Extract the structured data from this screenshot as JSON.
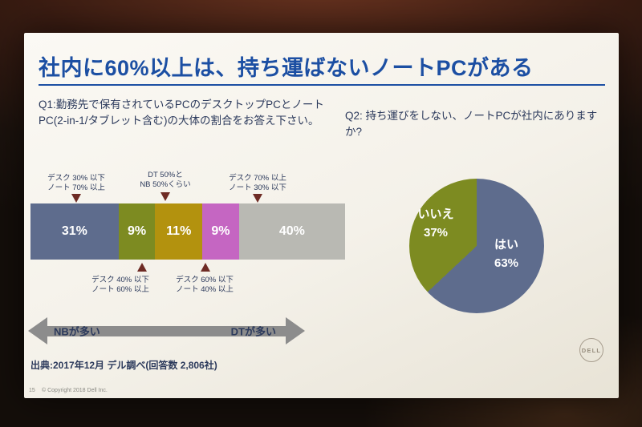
{
  "slide": {
    "title": "社内に60%以上は、持ち運ばないノートPCがある",
    "page_number": "15",
    "copyright": "© Copyright 2018 Dell Inc.",
    "logo_text": "DELL",
    "colors": {
      "title_blue": "#1c4fa3",
      "body_text": "#2c3a5c",
      "annotation_arrow": "#6e2b24",
      "axis_gray": "#8c8c8c"
    }
  },
  "chart_data": [
    {
      "type": "bar",
      "subtype": "horizontal-stacked",
      "question": "Q1:勤務先で保有されているPCのデスクトップPCとノートPC(2-in-1/タブレット含む)の大体の割合をお答え下さい。",
      "unit": "%",
      "total": 100,
      "segments": [
        {
          "category": "デスク30%以下・ノート70%以上",
          "value": 31,
          "display": "31%",
          "color": "#5e6c8d"
        },
        {
          "category": "デスク40%以下・ノート60%以上",
          "value": 9,
          "display": "9%",
          "color": "#7d8b21"
        },
        {
          "category": "DT50%とNB50%くらい",
          "value": 11,
          "display": "11%",
          "color": "#b3920e"
        },
        {
          "category": "デスク60%以下・ノート40%以上",
          "value": 9,
          "display": "9%",
          "color": "#c566c2"
        },
        {
          "category": "デスク70%以上・ノート30%以下",
          "value": 40,
          "display": "40%",
          "color": "#b9b9b3"
        }
      ],
      "annotations_top": [
        {
          "line1": "デスク 30% 以下",
          "line2": "ノート 70% 以上"
        },
        {
          "line1": "DT 50%と",
          "line2": "NB 50%くらい"
        },
        {
          "line1": "デスク 70% 以上",
          "line2": "ノート 30% 以下"
        }
      ],
      "annotations_bottom": [
        {
          "line1": "デスク 40% 以下",
          "line2": "ノート 60% 以上"
        },
        {
          "line1": "デスク 60% 以下",
          "line2": "ノート 40% 以上"
        }
      ],
      "axis_left": "NBが多い",
      "axis_right": "DTが多い",
      "source": "出典:2017年12月 デル調べ(回答数 2,806社)"
    },
    {
      "type": "pie",
      "question": "Q2: 持ち運びをしない、ノートPCが社内にありますか?",
      "labels": [
        "はい",
        "いいえ"
      ],
      "values": [
        63,
        37
      ],
      "display": [
        "63%",
        "37%"
      ],
      "colors": [
        "#5e6c8d",
        "#7d8b21"
      ],
      "start_angle_deg": 0,
      "direction": "clockwise"
    }
  ]
}
